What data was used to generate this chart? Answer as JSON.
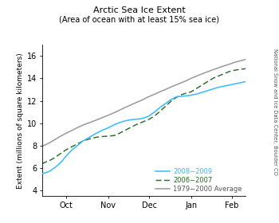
{
  "title": "Arctic Sea Ice Extent",
  "subtitle": "(Area of ocean with at least 15% sea ice)",
  "ylabel": "Extent (millions of square kilometers)",
  "right_label": "National Snow and Ice Data Center, Boulder CO",
  "xlim": [
    0,
    150
  ],
  "ylim": [
    3.5,
    17
  ],
  "yticks": [
    4,
    6,
    8,
    10,
    12,
    14,
    16
  ],
  "xtick_positions": [
    18,
    49,
    79,
    110,
    140
  ],
  "xtick_labels": [
    "Oct",
    "Nov",
    "Dec",
    "Jan",
    "Feb"
  ],
  "line_2008_color": "#33bbff",
  "line_2006_color": "#226622",
  "line_avg_color": "#999999",
  "legend_2008": "2008−2009",
  "legend_2006": "2006−2007",
  "legend_avg": "1979−2000 Average",
  "x_2008": [
    0,
    3,
    6,
    9,
    12,
    15,
    18,
    22,
    26,
    30,
    35,
    40,
    45,
    49,
    53,
    57,
    61,
    65,
    69,
    73,
    76,
    79,
    83,
    87,
    91,
    95,
    99,
    103,
    107,
    110,
    114,
    118,
    122,
    126,
    130,
    134,
    138,
    142,
    146,
    150
  ],
  "y_2008": [
    5.5,
    5.6,
    5.75,
    6.0,
    6.3,
    6.65,
    7.1,
    7.6,
    8.0,
    8.4,
    8.75,
    9.1,
    9.4,
    9.6,
    9.85,
    10.05,
    10.2,
    10.3,
    10.35,
    10.4,
    10.5,
    10.65,
    11.0,
    11.4,
    11.75,
    12.1,
    12.35,
    12.4,
    12.45,
    12.5,
    12.6,
    12.75,
    12.9,
    13.05,
    13.2,
    13.3,
    13.4,
    13.5,
    13.6,
    13.7
  ],
  "x_2006": [
    0,
    3,
    6,
    9,
    12,
    15,
    18,
    22,
    26,
    30,
    35,
    40,
    45,
    49,
    53,
    57,
    61,
    65,
    69,
    73,
    76,
    79,
    83,
    87,
    91,
    95,
    99,
    103,
    107,
    110,
    114,
    118,
    122,
    126,
    130,
    134,
    138,
    142,
    146,
    150
  ],
  "y_2006": [
    6.4,
    6.55,
    6.7,
    6.9,
    7.15,
    7.4,
    7.65,
    7.9,
    8.15,
    8.4,
    8.6,
    8.75,
    8.82,
    8.85,
    8.9,
    9.1,
    9.35,
    9.6,
    9.85,
    10.05,
    10.2,
    10.35,
    10.65,
    11.05,
    11.5,
    11.95,
    12.3,
    12.55,
    12.7,
    12.8,
    13.1,
    13.4,
    13.7,
    14.0,
    14.2,
    14.4,
    14.6,
    14.72,
    14.8,
    14.85
  ],
  "x_avg": [
    0,
    3,
    6,
    9,
    12,
    15,
    18,
    22,
    26,
    30,
    35,
    40,
    45,
    49,
    53,
    57,
    61,
    65,
    69,
    73,
    76,
    79,
    83,
    87,
    91,
    95,
    99,
    103,
    107,
    110,
    114,
    118,
    122,
    126,
    130,
    134,
    138,
    142,
    146,
    150
  ],
  "y_avg": [
    7.95,
    8.1,
    8.28,
    8.5,
    8.72,
    8.92,
    9.12,
    9.35,
    9.6,
    9.82,
    10.05,
    10.28,
    10.52,
    10.72,
    10.92,
    11.15,
    11.38,
    11.6,
    11.82,
    12.02,
    12.2,
    12.38,
    12.58,
    12.8,
    13.0,
    13.22,
    13.42,
    13.62,
    13.82,
    14.0,
    14.2,
    14.4,
    14.58,
    14.76,
    14.93,
    15.1,
    15.25,
    15.42,
    15.55,
    15.68
  ],
  "background_color": "#ffffff",
  "title_fontsize": 8,
  "label_fontsize": 6.5,
  "tick_fontsize": 7,
  "legend_fontsize": 6
}
